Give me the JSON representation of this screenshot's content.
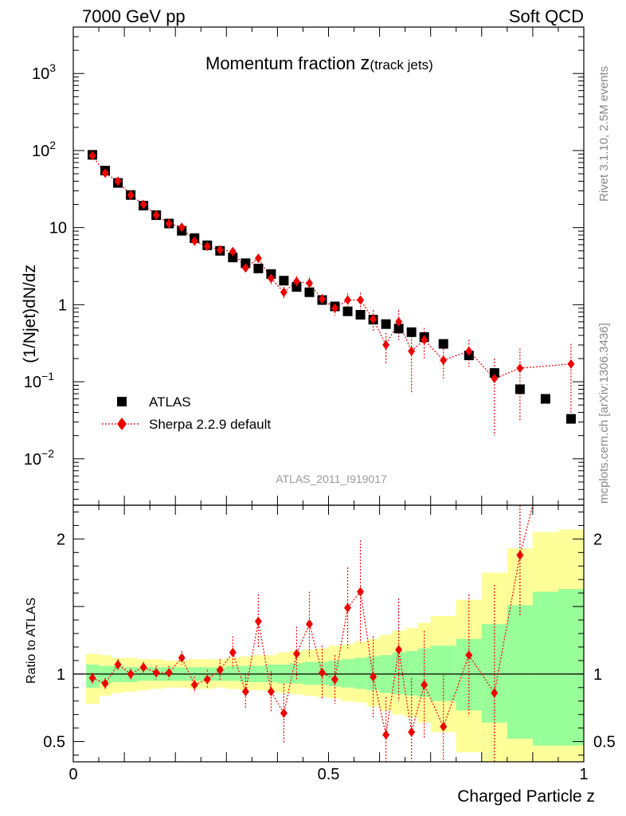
{
  "chart_data": [
    {
      "type": "scatter",
      "panel": "main",
      "title": "Momentum fraction z(track jets)",
      "title_main": "Momentum fraction ",
      "title_var": "z",
      "title_sub": "(track jets)",
      "header_left": "7000 GeV pp",
      "header_right": "Soft QCD",
      "ylabel": "(1/Njet)dN/dz",
      "yscale": "log",
      "ylim": [
        0.0025,
        4000
      ],
      "xlim": [
        0,
        1
      ],
      "y_tick_labels": [
        {
          "value": 0.01,
          "base": "10",
          "exp": "−2"
        },
        {
          "value": 0.1,
          "base": "10",
          "exp": "−1"
        },
        {
          "value": 1,
          "base": "1",
          "exp": ""
        },
        {
          "value": 10,
          "base": "10",
          "exp": ""
        },
        {
          "value": 100,
          "base": "10",
          "exp": "2"
        },
        {
          "value": 1000,
          "base": "10",
          "exp": "3"
        }
      ],
      "analysis_id": "ATLAS_2011_I919017",
      "legend": [
        "ATLAS",
        "Sherpa 2.2.9 default"
      ],
      "series": [
        {
          "name": "ATLAS",
          "style": "square",
          "color": "#000000",
          "x": [
            0.0375,
            0.0625,
            0.0875,
            0.1125,
            0.1375,
            0.1625,
            0.1875,
            0.2125,
            0.2375,
            0.2625,
            0.2875,
            0.3125,
            0.3375,
            0.3625,
            0.3875,
            0.4125,
            0.4375,
            0.4625,
            0.4875,
            0.5125,
            0.5375,
            0.5625,
            0.5875,
            0.6125,
            0.6375,
            0.6625,
            0.6875,
            0.725,
            0.775,
            0.825,
            0.875,
            0.925,
            0.975
          ],
          "y": [
            88,
            55,
            38,
            26.5,
            19.3,
            14.5,
            11.3,
            9.1,
            7.3,
            5.9,
            5.0,
            4.1,
            3.45,
            2.95,
            2.5,
            2.05,
            1.7,
            1.45,
            1.15,
            0.95,
            0.82,
            0.74,
            0.64,
            0.56,
            0.49,
            0.44,
            0.38,
            0.31,
            0.22,
            0.13,
            0.08,
            0.06,
            0.033
          ]
        },
        {
          "name": "Sherpa 2.2.9 default",
          "style": "diamond-dotted",
          "color": "#ee0000",
          "x": [
            0.0375,
            0.0625,
            0.0875,
            0.1125,
            0.1375,
            0.1625,
            0.1875,
            0.2125,
            0.2375,
            0.2625,
            0.2875,
            0.3125,
            0.3375,
            0.3625,
            0.3875,
            0.4125,
            0.4375,
            0.4625,
            0.4875,
            0.5125,
            0.5375,
            0.5625,
            0.5875,
            0.6125,
            0.6375,
            0.6625,
            0.6875,
            0.725,
            0.775,
            0.825,
            0.875,
            0.975
          ],
          "y": [
            86,
            51,
            40,
            26.5,
            20,
            14.5,
            11.3,
            10.1,
            6.7,
            5.7,
            5.15,
            4.9,
            3.0,
            4.0,
            2.2,
            1.45,
            2.0,
            1.9,
            1.18,
            0.9,
            1.15,
            1.15,
            0.65,
            0.3,
            0.6,
            0.25,
            0.35,
            0.19,
            0.25,
            0.11,
            0.15,
            0.17
          ],
          "y_err_low": [
            4,
            2.5,
            2,
            1.5,
            1,
            0.8,
            0.6,
            0.6,
            0.5,
            0.45,
            0.45,
            0.5,
            0.35,
            0.5,
            0.35,
            0.25,
            0.35,
            0.35,
            0.2,
            0.18,
            0.25,
            0.28,
            0.2,
            0.13,
            0.25,
            0.18,
            0.15,
            0.08,
            0.1,
            0.09,
            0.12,
            0.14
          ],
          "y_err_high": [
            4,
            2.5,
            2,
            1.5,
            1,
            0.8,
            0.6,
            0.6,
            0.5,
            0.45,
            0.45,
            0.5,
            0.35,
            0.5,
            0.35,
            0.25,
            0.35,
            0.35,
            0.2,
            0.18,
            0.25,
            0.28,
            0.2,
            0.13,
            0.25,
            0.18,
            0.15,
            0.08,
            0.1,
            0.09,
            0.12,
            0.14
          ]
        }
      ],
      "side_text_top": "Rivet 3.1.10,  2.5M events",
      "side_text_bottom": "mcplots.cern.ch [arXiv:1306.3436]"
    },
    {
      "type": "scatter",
      "panel": "ratio",
      "ylabel": "Ratio to ATLAS",
      "xlabel": "Charged Particle z",
      "xlim": [
        0,
        1
      ],
      "ylim": [
        0.35,
        2.25
      ],
      "x_tick_labels": [
        {
          "value": 0,
          "label": "0"
        },
        {
          "value": 0.5,
          "label": "0.5"
        },
        {
          "value": 1,
          "label": "1"
        }
      ],
      "y_tick_labels": [
        {
          "value": 0.5,
          "label": "0.5"
        },
        {
          "value": 1,
          "label": "1"
        },
        {
          "value": 2,
          "label": "2"
        }
      ],
      "bands": {
        "x_edges": [
          0.025,
          0.05,
          0.075,
          0.1,
          0.125,
          0.15,
          0.175,
          0.2,
          0.225,
          0.25,
          0.275,
          0.3,
          0.325,
          0.35,
          0.375,
          0.4,
          0.425,
          0.45,
          0.475,
          0.5,
          0.525,
          0.55,
          0.575,
          0.6,
          0.625,
          0.65,
          0.675,
          0.7,
          0.75,
          0.8,
          0.85,
          0.9,
          0.95,
          1.0
        ],
        "yellow_low": [
          0.78,
          0.84,
          0.86,
          0.87,
          0.88,
          0.89,
          0.9,
          0.9,
          0.89,
          0.89,
          0.9,
          0.89,
          0.88,
          0.88,
          0.87,
          0.86,
          0.85,
          0.84,
          0.83,
          0.82,
          0.8,
          0.79,
          0.76,
          0.73,
          0.7,
          0.68,
          0.64,
          0.57,
          0.42,
          0.3,
          0.0,
          0.0,
          0.0
        ],
        "yellow_high": [
          1.15,
          1.14,
          1.12,
          1.12,
          1.11,
          1.11,
          1.1,
          1.1,
          1.11,
          1.11,
          1.11,
          1.12,
          1.13,
          1.14,
          1.14,
          1.16,
          1.17,
          1.18,
          1.19,
          1.21,
          1.22,
          1.24,
          1.26,
          1.29,
          1.32,
          1.34,
          1.38,
          1.43,
          1.55,
          1.75,
          1.93,
          2.05,
          2.07
        ],
        "green_low": [
          0.9,
          0.93,
          0.94,
          0.94,
          0.95,
          0.95,
          0.95,
          0.95,
          0.95,
          0.95,
          0.95,
          0.95,
          0.94,
          0.94,
          0.94,
          0.93,
          0.93,
          0.92,
          0.92,
          0.91,
          0.9,
          0.89,
          0.88,
          0.86,
          0.85,
          0.84,
          0.83,
          0.8,
          0.73,
          0.64,
          0.52,
          0.47,
          0.47
        ],
        "green_high": [
          1.07,
          1.06,
          1.06,
          1.05,
          1.05,
          1.05,
          1.05,
          1.05,
          1.05,
          1.05,
          1.05,
          1.06,
          1.06,
          1.06,
          1.07,
          1.07,
          1.08,
          1.09,
          1.09,
          1.1,
          1.11,
          1.12,
          1.13,
          1.14,
          1.16,
          1.17,
          1.19,
          1.21,
          1.26,
          1.37,
          1.51,
          1.61,
          1.63
        ]
      },
      "series": [
        {
          "name": "Sherpa 2.2.9 default / ATLAS",
          "color": "#ee0000",
          "x": [
            0.0375,
            0.0625,
            0.0875,
            0.1125,
            0.1375,
            0.1625,
            0.1875,
            0.2125,
            0.2375,
            0.2625,
            0.2875,
            0.3125,
            0.3375,
            0.3625,
            0.3875,
            0.4125,
            0.4375,
            0.4625,
            0.4875,
            0.5125,
            0.5375,
            0.5625,
            0.5875,
            0.6125,
            0.6375,
            0.6625,
            0.6875,
            0.725,
            0.775,
            0.825,
            0.875
          ],
          "y": [
            0.97,
            0.93,
            1.07,
            1.0,
            1.05,
            1.01,
            1.01,
            1.12,
            0.92,
            0.96,
            1.03,
            1.16,
            0.87,
            1.39,
            0.87,
            0.71,
            1.15,
            1.37,
            1.01,
            0.96,
            1.49,
            1.61,
            0.98,
            0.55,
            1.18,
            0.57,
            0.92,
            0.61,
            1.14,
            0.86,
            1.88
          ],
          "err": [
            0.04,
            0.04,
            0.04,
            0.04,
            0.04,
            0.05,
            0.05,
            0.05,
            0.06,
            0.07,
            0.08,
            0.12,
            0.13,
            0.2,
            0.15,
            0.22,
            0.2,
            0.24,
            0.2,
            0.18,
            0.3,
            0.38,
            0.3,
            0.28,
            0.38,
            0.4,
            0.4,
            0.38,
            0.45,
            0.8,
            0.45
          ]
        }
      ]
    }
  ]
}
